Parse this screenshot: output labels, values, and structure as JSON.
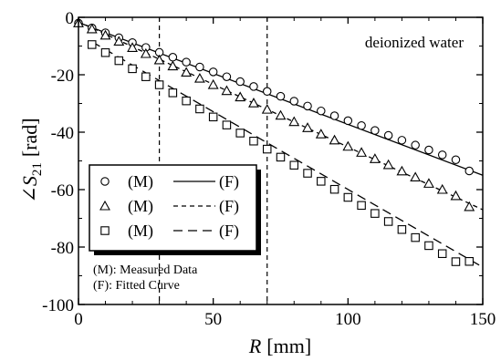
{
  "chart_data": {
    "type": "scatter",
    "xlabel_var": "R",
    "xlabel_unit": "[mm]",
    "ylabel_sym": "∠S",
    "ylabel_sub": "21",
    "ylabel_unit": "[rad]",
    "xlim": [
      0,
      150
    ],
    "ylim": [
      -100,
      0
    ],
    "xticks": [
      0,
      50,
      100,
      150
    ],
    "yticks": [
      0,
      -20,
      -40,
      -60,
      -80,
      -100
    ],
    "xtick_labels": [
      "0",
      "50",
      "100",
      "150"
    ],
    "ytick_labels": [
      "0",
      "-20",
      "-40",
      "-60",
      "-80",
      "-100"
    ],
    "grid": false,
    "annotation": "deionized water",
    "vlines": [
      30,
      70
    ],
    "series": [
      {
        "marker": "circle",
        "line": "solid",
        "marker_label": "(M)",
        "line_label": "(F)",
        "x": [
          0,
          5,
          10,
          15,
          20,
          25,
          30,
          35,
          40,
          45,
          50,
          55,
          60,
          65,
          70,
          75,
          80,
          85,
          90,
          95,
          100,
          105,
          110,
          115,
          120,
          125,
          130,
          135,
          140,
          145
        ],
        "y": [
          -2,
          -3.7,
          -5.4,
          -7.1,
          -8.8,
          -10.5,
          -12.2,
          -13.9,
          -15.6,
          -17.3,
          -19.0,
          -20.7,
          -22.4,
          -24.1,
          -25.8,
          -27.5,
          -29.2,
          -30.9,
          -32.6,
          -34.3,
          -36.0,
          -37.7,
          -39.4,
          -41.1,
          -42.8,
          -44.5,
          -46.2,
          -47.9,
          -49.6,
          -53.5
        ],
        "fit": [
          [
            0,
            -1.8
          ],
          [
            150,
            -55.0
          ]
        ]
      },
      {
        "marker": "triangle",
        "line": "dashed-short",
        "marker_label": "(M)",
        "line_label": "(F)",
        "x": [
          0,
          5,
          10,
          15,
          20,
          25,
          30,
          35,
          40,
          45,
          50,
          55,
          60,
          65,
          70,
          75,
          80,
          85,
          90,
          95,
          100,
          105,
          110,
          115,
          120,
          125,
          130,
          135,
          140,
          145
        ],
        "y": [
          -2,
          -4.1,
          -6.3,
          -8.4,
          -10.6,
          -12.7,
          -14.9,
          -17.0,
          -19.2,
          -21.3,
          -23.5,
          -25.6,
          -27.8,
          -29.9,
          -32.1,
          -34.2,
          -36.4,
          -38.5,
          -40.7,
          -42.8,
          -45.0,
          -47.1,
          -49.3,
          -51.4,
          -53.6,
          -55.7,
          -57.9,
          -60.0,
          -62.2,
          -66.0
        ],
        "fit": [
          [
            0,
            -1.5
          ],
          [
            150,
            -67.0
          ]
        ]
      },
      {
        "marker": "square",
        "line": "dashed-long",
        "marker_label": "(M)",
        "line_label": "(F)",
        "x": [
          5,
          10,
          15,
          20,
          25,
          30,
          35,
          40,
          45,
          50,
          55,
          60,
          65,
          70,
          75,
          80,
          85,
          90,
          95,
          100,
          105,
          110,
          115,
          120,
          125,
          130,
          135,
          140,
          145
        ],
        "y": [
          -9.5,
          -12.3,
          -15.1,
          -17.9,
          -20.7,
          -23.5,
          -26.3,
          -29.1,
          -31.9,
          -34.7,
          -37.5,
          -40.3,
          -43.1,
          -45.9,
          -48.7,
          -51.5,
          -54.3,
          -57.1,
          -59.9,
          -62.7,
          -65.5,
          -68.3,
          -71.1,
          -73.9,
          -76.7,
          -79.5,
          -82.3,
          -85.1,
          -85.0
        ],
        "fit": [
          [
            5,
            -8.5
          ],
          [
            150,
            -87.0
          ]
        ]
      }
    ],
    "legend_note_1": "(M): Measured Data",
    "legend_note_2": "(F): Fitted Curve"
  }
}
